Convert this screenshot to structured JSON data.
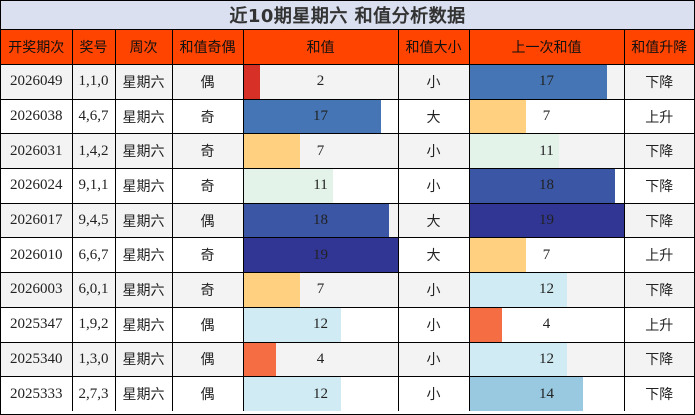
{
  "title": "近10期星期六 和值分析数据",
  "colors": {
    "title_bg": "#dae0ef",
    "header_bg": "#ff4400",
    "row_alt_bg": "#f3f3f3",
    "bar_scale": {
      "2": "#d73027",
      "4": "#f46d43",
      "7": "#fed07f",
      "11": "#e4f3ea",
      "12": "#d0ebf3",
      "14": "#98c9e0",
      "17": "#4575b4",
      "18": "#3a56a5",
      "19": "#313695"
    }
  },
  "headers": [
    "开奖期次",
    "奖号",
    "周次",
    "和值奇偶",
    "和值",
    "和值大小",
    "上一次和值",
    "和值升降"
  ],
  "max_sum": 19,
  "rows": [
    {
      "period": "2026049",
      "numbers": "1,1,0",
      "weekday": "星期六",
      "parity": "偶",
      "sum": "2",
      "size": "小",
      "prev_sum": "17",
      "trend": "下降"
    },
    {
      "period": "2026038",
      "numbers": "4,6,7",
      "weekday": "星期六",
      "parity": "奇",
      "sum": "17",
      "size": "大",
      "prev_sum": "7",
      "trend": "上升"
    },
    {
      "period": "2026031",
      "numbers": "1,4,2",
      "weekday": "星期六",
      "parity": "奇",
      "sum": "7",
      "size": "小",
      "prev_sum": "11",
      "trend": "下降"
    },
    {
      "period": "2026024",
      "numbers": "9,1,1",
      "weekday": "星期六",
      "parity": "奇",
      "sum": "11",
      "size": "小",
      "prev_sum": "18",
      "trend": "下降"
    },
    {
      "period": "2026017",
      "numbers": "9,4,5",
      "weekday": "星期六",
      "parity": "偶",
      "sum": "18",
      "size": "大",
      "prev_sum": "19",
      "trend": "下降"
    },
    {
      "period": "2026010",
      "numbers": "6,6,7",
      "weekday": "星期六",
      "parity": "奇",
      "sum": "19",
      "size": "大",
      "prev_sum": "7",
      "trend": "上升"
    },
    {
      "period": "2026003",
      "numbers": "6,0,1",
      "weekday": "星期六",
      "parity": "奇",
      "sum": "7",
      "size": "小",
      "prev_sum": "12",
      "trend": "下降"
    },
    {
      "period": "2025347",
      "numbers": "1,9,2",
      "weekday": "星期六",
      "parity": "偶",
      "sum": "12",
      "size": "小",
      "prev_sum": "4",
      "trend": "上升"
    },
    {
      "period": "2025340",
      "numbers": "1,3,0",
      "weekday": "星期六",
      "parity": "偶",
      "sum": "4",
      "size": "小",
      "prev_sum": "12",
      "trend": "下降"
    },
    {
      "period": "2025333",
      "numbers": "2,7,3",
      "weekday": "星期六",
      "parity": "偶",
      "sum": "12",
      "size": "小",
      "prev_sum": "14",
      "trend": "下降"
    }
  ]
}
